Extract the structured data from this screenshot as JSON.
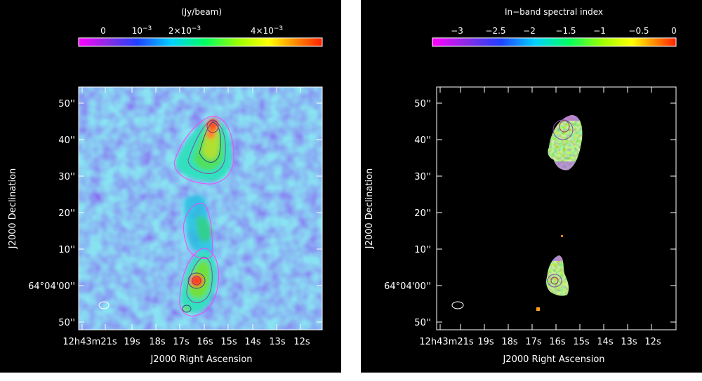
{
  "panels": [
    {
      "colorbar": {
        "title": "(Jy/beam)",
        "ticks": [
          {
            "base": "0",
            "exp": ""
          },
          {
            "base": "10",
            "exp": "−3"
          },
          {
            "base": "2×10",
            "exp": "−3"
          },
          {
            "base": "4×10",
            "exp": "−3"
          }
        ],
        "colormap": "rainbow (magenta-blue-cyan-green-yellow-red)"
      },
      "axes": {
        "ylabel": "J2000 Declination",
        "xlabel": "J2000 Right Ascension",
        "yticks": [
          "50''",
          "40''",
          "30''",
          "20''",
          "10''",
          "64°04'00''",
          "50''"
        ],
        "xticks": [
          "12h43m21s",
          "19s",
          "18s",
          "17s",
          "16s",
          "15s",
          "14s",
          "13s",
          "12s"
        ]
      },
      "image_description": "radio intensity map with contours"
    },
    {
      "colorbar": {
        "title": "In−band spectral index",
        "ticks": [
          {
            "base": "−3",
            "exp": ""
          },
          {
            "base": "−2.5",
            "exp": ""
          },
          {
            "base": "−2",
            "exp": ""
          },
          {
            "base": "−1.5",
            "exp": ""
          },
          {
            "base": "−1",
            "exp": ""
          },
          {
            "base": "−0.5",
            "exp": ""
          },
          {
            "base": "0",
            "exp": ""
          }
        ],
        "colormap": "rainbow (magenta-blue-cyan-green-yellow-red)"
      },
      "axes": {
        "ylabel": "J2000 Declination",
        "xlabel": "J2000 Right Ascension",
        "yticks": [
          "50''",
          "40''",
          "30''",
          "20''",
          "10''",
          "64°04'00''",
          "50''"
        ],
        "xticks": [
          "12h43m21s",
          "19s",
          "18s",
          "17s",
          "16s",
          "15s",
          "14s",
          "13s",
          "12s"
        ]
      },
      "image_description": "spectral index map"
    }
  ]
}
